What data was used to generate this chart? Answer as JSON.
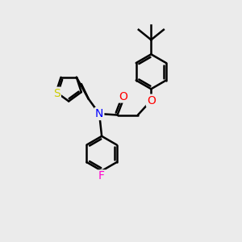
{
  "background_color": "#ebebeb",
  "atom_colors": {
    "N": "#0000ff",
    "O": "#ff0000",
    "S": "#cccc00",
    "F": "#ff00cc",
    "C": "#000000"
  },
  "line_color": "#000000",
  "line_width": 1.8,
  "font_size": 9.5,
  "figsize": [
    3.0,
    3.0
  ],
  "dpi": 100
}
